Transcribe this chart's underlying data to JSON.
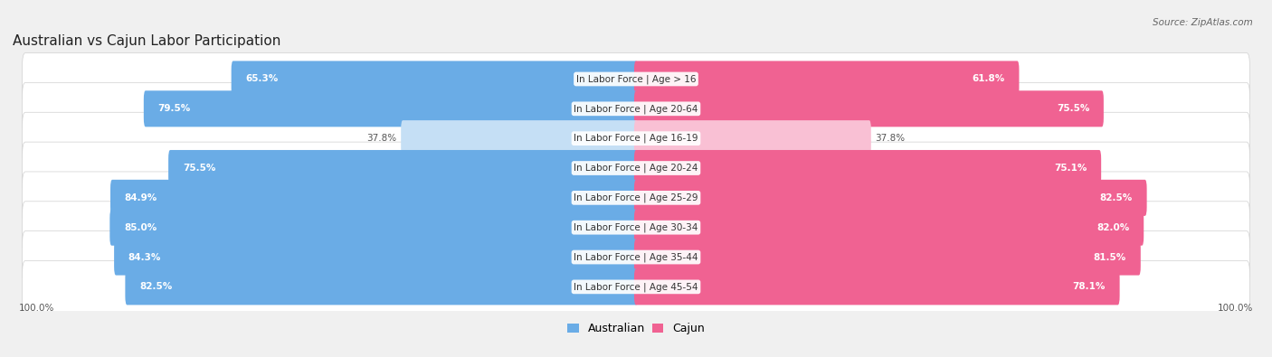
{
  "title": "Australian vs Cajun Labor Participation",
  "source": "Source: ZipAtlas.com",
  "categories": [
    "In Labor Force | Age > 16",
    "In Labor Force | Age 20-64",
    "In Labor Force | Age 16-19",
    "In Labor Force | Age 20-24",
    "In Labor Force | Age 25-29",
    "In Labor Force | Age 30-34",
    "In Labor Force | Age 35-44",
    "In Labor Force | Age 45-54"
  ],
  "australian_values": [
    65.3,
    79.5,
    37.8,
    75.5,
    84.9,
    85.0,
    84.3,
    82.5
  ],
  "cajun_values": [
    61.8,
    75.5,
    37.8,
    75.1,
    82.5,
    82.0,
    81.5,
    78.1
  ],
  "australian_color": "#6aace6",
  "australian_light_color": "#c5dff5",
  "cajun_color": "#f06292",
  "cajun_light_color": "#f9c0d4",
  "bg_color": "#f0f0f0",
  "row_bg_color": "#e4e4e4",
  "max_value": 100.0,
  "label_fontsize": 7.5,
  "title_fontsize": 11,
  "value_fontsize": 7.5,
  "legend_fontsize": 9
}
